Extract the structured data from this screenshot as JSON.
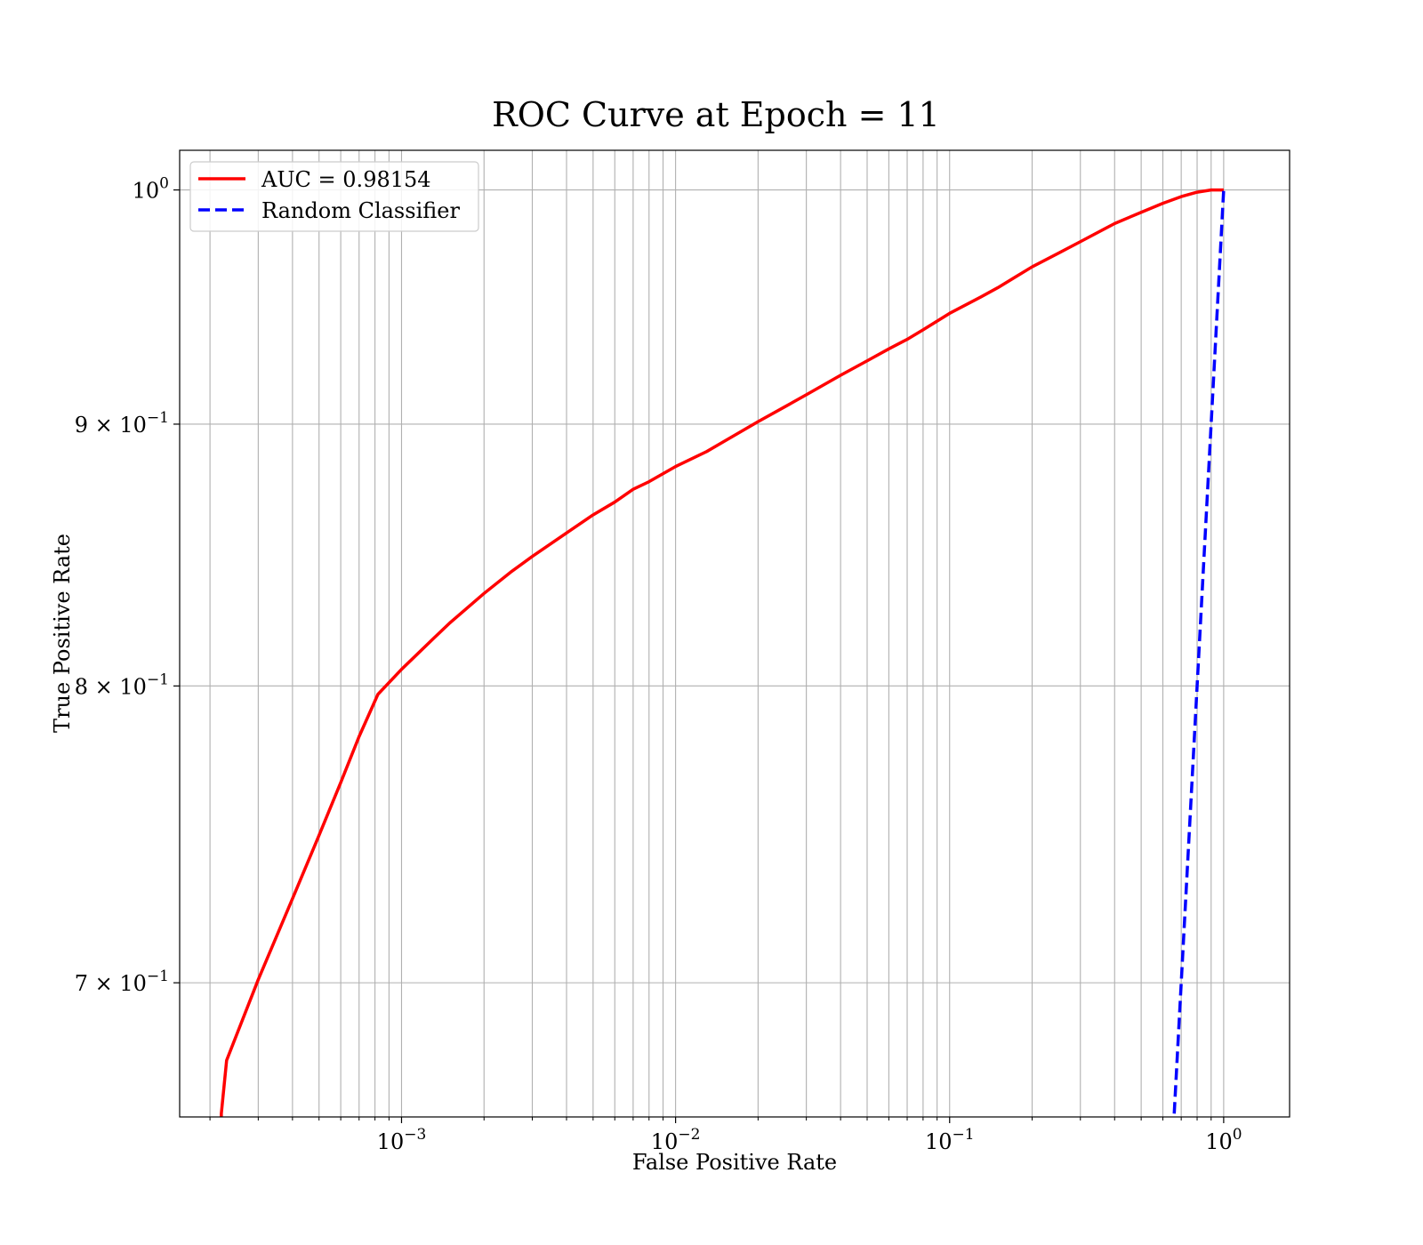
{
  "chart_data": {
    "type": "line",
    "title": "ROC Curve at Epoch = 11",
    "xlabel": "False Positive Rate",
    "ylabel": "True Positive Rate",
    "xscale": "log",
    "yscale": "log",
    "xlim": [
      0.000155,
      1.74
    ],
    "ylim": [
      0.659,
      1.018
    ],
    "grid": true,
    "legend_position": "top-left",
    "x_ticks": [
      {
        "value": 0.001,
        "base": "10",
        "exp": "−3"
      },
      {
        "value": 0.01,
        "base": "10",
        "exp": "−2"
      },
      {
        "value": 0.1,
        "base": "10",
        "exp": "−1"
      },
      {
        "value": 1,
        "base": "10",
        "exp": "0"
      }
    ],
    "y_ticks": [
      {
        "value": 0.7,
        "base": "7 × 10",
        "exp": "−1"
      },
      {
        "value": 0.8,
        "base": "8 × 10",
        "exp": "−1"
      },
      {
        "value": 0.9,
        "base": "9 × 10",
        "exp": "−1"
      },
      {
        "value": 1.0,
        "base": "10",
        "exp": "0"
      }
    ],
    "series": [
      {
        "name": "AUC = 0.98154",
        "color": "#ff0000",
        "style": "solid",
        "x": [
          0.00022,
          0.00022,
          0.00023,
          0.0003,
          0.0004,
          0.0005,
          0.0006,
          0.0007,
          0.00082,
          0.001,
          0.0013,
          0.0015,
          0.002,
          0.0025,
          0.003,
          0.004,
          0.005,
          0.006,
          0.007,
          0.008,
          0.01,
          0.013,
          0.015,
          0.02,
          0.025,
          0.03,
          0.04,
          0.05,
          0.06,
          0.07,
          0.08,
          0.1,
          0.13,
          0.15,
          0.2,
          0.25,
          0.3,
          0.4,
          0.5,
          0.6,
          0.7,
          0.8,
          0.9,
          1.0
        ],
        "y": [
          0.655,
          0.66,
          0.676,
          0.701,
          0.727,
          0.748,
          0.766,
          0.782,
          0.797,
          0.806,
          0.817,
          0.823,
          0.834,
          0.842,
          0.848,
          0.857,
          0.864,
          0.869,
          0.874,
          0.877,
          0.883,
          0.889,
          0.893,
          0.901,
          0.907,
          0.912,
          0.92,
          0.926,
          0.931,
          0.935,
          0.939,
          0.946,
          0.953,
          0.957,
          0.966,
          0.972,
          0.977,
          0.985,
          0.99,
          0.994,
          0.997,
          0.999,
          1.0,
          1.0
        ]
      },
      {
        "name": "Random Classifier",
        "color": "#0000ff",
        "style": "dashed",
        "x": [
          0.655,
          1.0
        ],
        "y": [
          0.655,
          1.0
        ]
      }
    ]
  }
}
